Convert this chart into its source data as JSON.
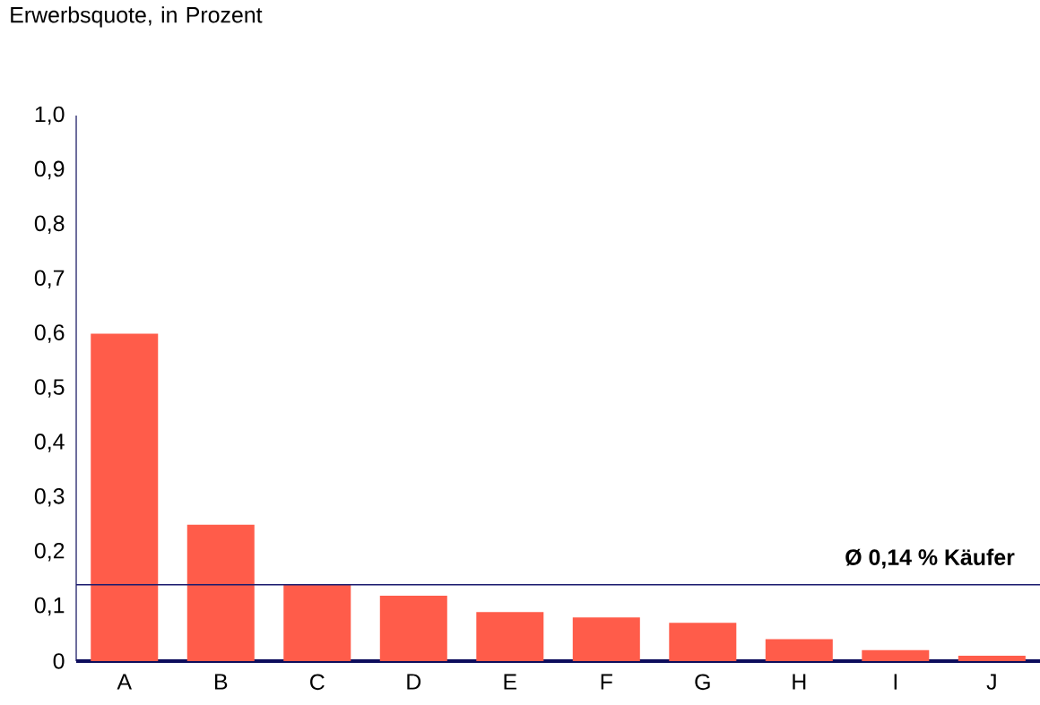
{
  "chart_data": {
    "type": "bar",
    "ylabel": "Erwerbsquote, in Prozent",
    "categories": [
      "A",
      "B",
      "C",
      "D",
      "E",
      "F",
      "G",
      "H",
      "I",
      "J"
    ],
    "values": [
      0.6,
      0.25,
      0.14,
      0.12,
      0.09,
      0.08,
      0.07,
      0.04,
      0.02,
      0.01
    ],
    "color": "#ff5c4a",
    "ylim": [
      0,
      1
    ],
    "yticks": [
      0,
      {
        "value": 0.1,
        "label": "0,1"
      },
      {
        "value": 0.2,
        "label": "0,2"
      },
      {
        "value": 0.3,
        "label": "0,3"
      },
      {
        "value": 0.4,
        "label": "0,4"
      },
      {
        "value": 0.5,
        "label": "0,5"
      },
      {
        "value": 0.6,
        "label": "0,6"
      },
      {
        "value": 0.7,
        "label": "0,7"
      },
      {
        "value": 0.8,
        "label": "0,8"
      },
      {
        "value": 0.9,
        "label": "0,9"
      },
      {
        "value": 1,
        "label": "1,0"
      }
    ],
    "ref_lines": [
      {
        "axis": "y",
        "value": 0.14,
        "label": "Ø 0,14 % Käufer",
        "color": "#1a1a6e"
      }
    ]
  }
}
